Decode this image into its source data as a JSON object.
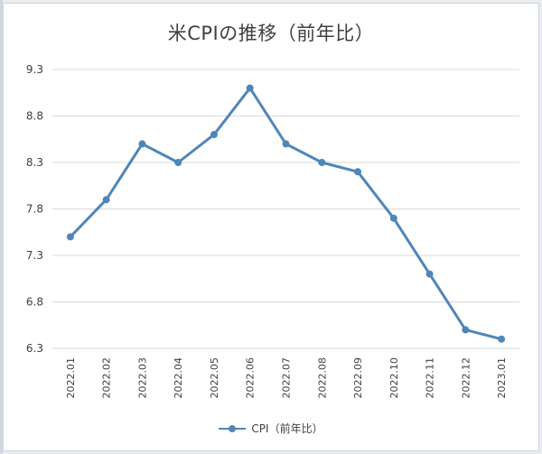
{
  "colors": {
    "series": "#4f86b8",
    "grid": "#d9d9d9",
    "text": "#404040"
  },
  "chart_data": {
    "type": "line",
    "title": "米CPIの推移（前年比）",
    "categories": [
      "2022.01",
      "2022.02",
      "2022.03",
      "2022.04",
      "2022.05",
      "2022.06",
      "2022.07",
      "2022.08",
      "2022.09",
      "2022.10",
      "2022.11",
      "2022.12",
      "2023.01"
    ],
    "series": [
      {
        "name": "CPI（前年比）",
        "values": [
          7.5,
          7.9,
          8.5,
          8.3,
          8.6,
          9.1,
          8.5,
          8.3,
          8.2,
          7.7,
          7.1,
          6.5,
          6.4
        ]
      }
    ],
    "yticks": [
      "6.3",
      "6.8",
      "7.3",
      "7.8",
      "8.3",
      "8.8",
      "9.3"
    ],
    "ylim": [
      6.3,
      9.3
    ],
    "xlabel": "",
    "ylabel": "",
    "grid": true,
    "legend_position": "bottom",
    "marker": "circle"
  }
}
